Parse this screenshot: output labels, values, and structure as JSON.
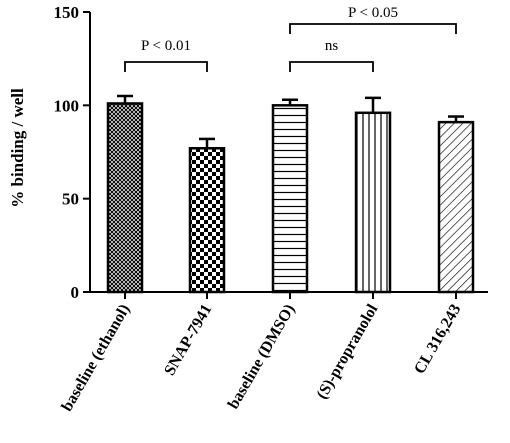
{
  "chart_data": {
    "type": "bar",
    "title": "",
    "xlabel": "",
    "ylabel": "% binding / well",
    "ylim": [
      0,
      150
    ],
    "yticks": [
      "0",
      "50",
      "100",
      "150"
    ],
    "ytick_values": [
      0,
      50,
      100,
      150
    ],
    "categories": [
      "baseline (ethanol)",
      "SNAP-7941",
      "baseline (DMSO)",
      "(S)-propranolol",
      "CL 316,243"
    ],
    "values": [
      101,
      77,
      100,
      96,
      91
    ],
    "errors": [
      4,
      5,
      3,
      8,
      3
    ],
    "patterns": [
      "crosshatch",
      "checker",
      "horizontal-lines",
      "vertical-lines",
      "diagonal-lines"
    ],
    "grid": false,
    "legend": "none",
    "bar_color": "#000000",
    "comparisons": [
      {
        "from": 0,
        "to": 1,
        "label": "P < 0.01"
      },
      {
        "from": 2,
        "to": 3,
        "label": "ns"
      },
      {
        "from": 2,
        "to": 4,
        "label": "P < 0.05"
      }
    ]
  }
}
